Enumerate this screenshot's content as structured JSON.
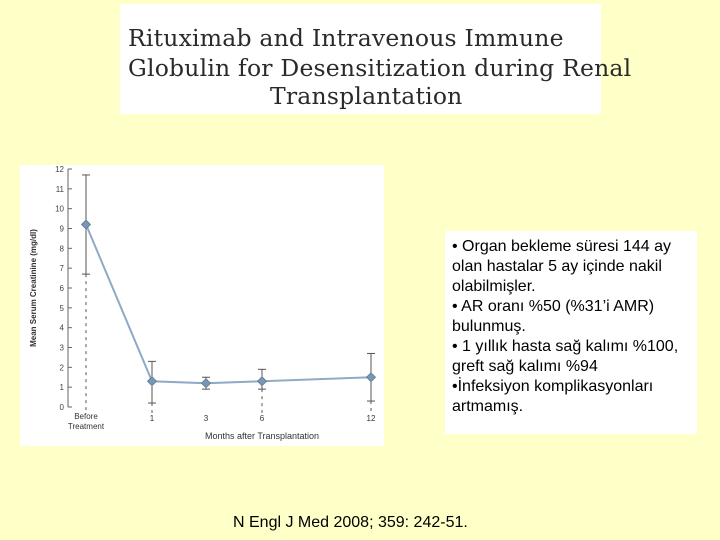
{
  "title": {
    "lines": [
      "Rituximab and Intravenous Immune",
      "Globulin for Desensitization during Renal",
      "Transplantation"
    ]
  },
  "bullets": [
    "• Organ bekleme süresi 144 ay olan hastalar 5 ay içinde nakil olabilmişler.",
    "• AR oranı %50 (%31’i AMR) bulunmuş.",
    "• 1 yıllık hasta sağ kalımı %100, greft sağ kalımı %94",
    "•İnfeksiyon komplikasyonları artmamış."
  ],
  "citation": "N Engl J Med 2008; 359: 242-51.",
  "chart_data": {
    "type": "line",
    "xlabel": "Months after Transplantation",
    "ylabel": "Mean Serum Creatinine (mg/dl)",
    "ylim": [
      0,
      12
    ],
    "yticks": [
      0,
      1,
      2,
      3,
      4,
      5,
      6,
      7,
      8,
      9,
      10,
      11,
      12
    ],
    "x_tick_labels": [
      "Before Treatment",
      "1",
      "3",
      "6",
      "12"
    ],
    "x_months": [
      null,
      1,
      3,
      6,
      12
    ],
    "series": [
      {
        "values": [
          9.2,
          1.3,
          1.2,
          1.3,
          1.5
        ],
        "error_low": [
          6.7,
          0.2,
          0.9,
          0.9,
          0.3
        ],
        "error_high": [
          11.7,
          2.3,
          1.5,
          1.9,
          2.7
        ]
      }
    ],
    "colors": {
      "line": "#8faac4",
      "marker": "#7a96b4",
      "error": "#555555"
    },
    "grid": false
  }
}
